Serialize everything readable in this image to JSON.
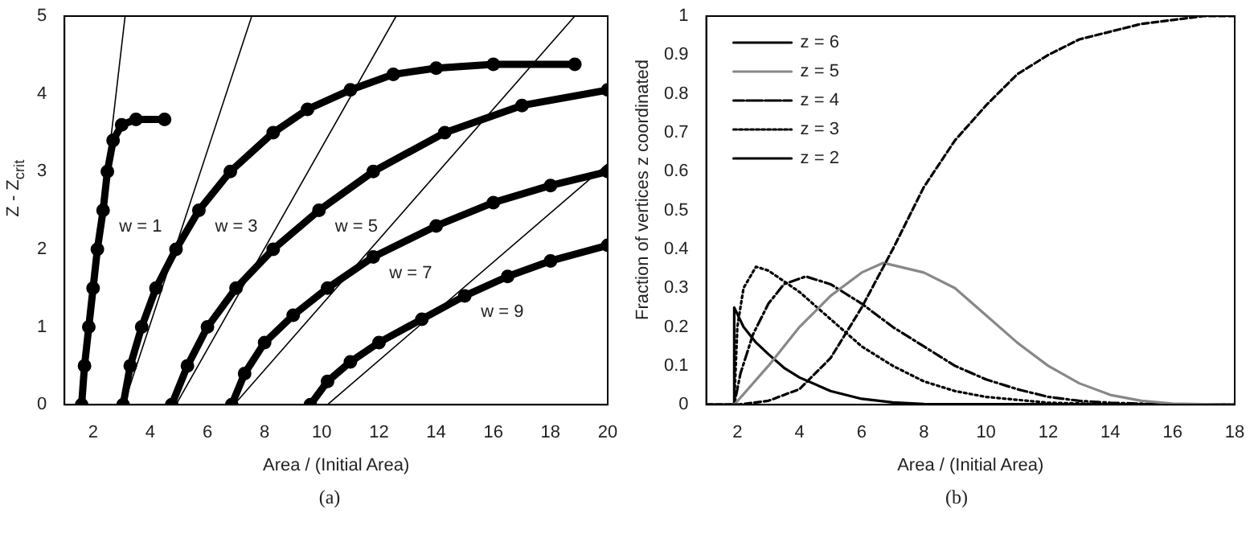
{
  "chart_data": [
    {
      "type": "line",
      "xlabel": "Area / (Initial Area)",
      "ylabel": "Z - Z$_{crit}$",
      "xlim": [
        1,
        20
      ],
      "xticks": [
        2,
        4,
        6,
        8,
        10,
        12,
        14,
        16,
        18,
        20
      ],
      "ylim": [
        0,
        5
      ],
      "yticks": [
        0,
        1,
        2,
        3,
        4,
        5
      ],
      "grid": false,
      "legend": false,
      "series": [
        {
          "name": "w = 1",
          "color": "#000000",
          "marker": "circle",
          "x": [
            1.6,
            1.7,
            1.85,
            2.0,
            2.15,
            2.35,
            2.5,
            2.7,
            3.0,
            3.5,
            4.5
          ],
          "values": [
            0,
            0.5,
            1,
            1.5,
            2,
            2.5,
            3,
            3.4,
            3.6,
            3.67,
            3.67
          ]
        },
        {
          "name": "w = 3",
          "color": "#000000",
          "marker": "circle",
          "x": [
            3.05,
            3.3,
            3.7,
            4.2,
            4.9,
            5.7,
            6.8,
            8.3,
            9.5,
            11,
            12.5,
            14,
            16,
            18.85
          ],
          "values": [
            0,
            0.5,
            1,
            1.5,
            2,
            2.5,
            3,
            3.5,
            3.8,
            4.05,
            4.25,
            4.33,
            4.38,
            4.38
          ]
        },
        {
          "name": "w = 5",
          "color": "#000000",
          "marker": "circle",
          "x": [
            4.75,
            5.3,
            6.0,
            7.0,
            8.3,
            9.9,
            11.8,
            14.3,
            17,
            20
          ],
          "values": [
            0,
            0.5,
            1,
            1.5,
            2,
            2.5,
            3,
            3.5,
            3.85,
            4.05
          ]
        },
        {
          "name": "w = 7",
          "color": "#000000",
          "marker": "circle",
          "x": [
            6.85,
            7.3,
            8.0,
            9.0,
            10.2,
            11.8,
            14,
            16,
            18,
            20
          ],
          "values": [
            0,
            0.4,
            0.8,
            1.15,
            1.5,
            1.9,
            2.3,
            2.6,
            2.82,
            3.0
          ]
        },
        {
          "name": "w = 9",
          "color": "#000000",
          "marker": "circle",
          "x": [
            9.6,
            10.2,
            11,
            12,
            13.5,
            15,
            16.5,
            18,
            20
          ],
          "values": [
            0,
            0.3,
            0.55,
            0.8,
            1.1,
            1.4,
            1.65,
            1.85,
            2.05
          ]
        },
        {
          "color": "#000000",
          "x": [
            1.54,
            3.12
          ],
          "values": [
            0,
            5
          ]
        },
        {
          "color": "#000000",
          "x": [
            3.07,
            7.55
          ],
          "values": [
            0,
            5
          ]
        },
        {
          "color": "#000000",
          "x": [
            4.9,
            12.6
          ],
          "values": [
            0,
            5
          ]
        },
        {
          "color": "#000000",
          "x": [
            6.93,
            18.85
          ],
          "values": [
            0,
            5
          ]
        },
        {
          "color": "#000000",
          "x": [
            10.2,
            20
          ],
          "values": [
            0,
            3.1
          ]
        }
      ],
      "annotations": [
        "(a)"
      ]
    },
    {
      "type": "line",
      "xlabel": "Area / (Initial Area)",
      "ylabel": "Fraction of vertices z coordinated",
      "xlim": [
        1,
        18
      ],
      "xticks": [
        2,
        4,
        6,
        8,
        10,
        12,
        14,
        16,
        18
      ],
      "ylim": [
        0,
        1
      ],
      "yticks": [
        0,
        0.1,
        0.2,
        0.3,
        0.4,
        0.5,
        0.6,
        0.7,
        0.8,
        0.9,
        1
      ],
      "grid": false,
      "legend": "top left",
      "marker": "none",
      "series": [
        {
          "name": "z = 6",
          "color": "#000000",
          "line_style": "dashed",
          "x": [
            1,
            2,
            3,
            4,
            5,
            6,
            7,
            8,
            9,
            10,
            11,
            12,
            13,
            14,
            15,
            16,
            17,
            18
          ],
          "values": [
            0,
            0,
            0.01,
            0.04,
            0.12,
            0.25,
            0.4,
            0.56,
            0.68,
            0.77,
            0.85,
            0.9,
            0.94,
            0.96,
            0.98,
            0.99,
            1,
            1
          ]
        },
        {
          "name": "z = 5",
          "color": "#888888",
          "line_style": "solid",
          "x": [
            1,
            1.9,
            3,
            4,
            5,
            6,
            6.7,
            8,
            9,
            10,
            11,
            12,
            13,
            14,
            15,
            16,
            18
          ],
          "values": [
            0,
            0,
            0.1,
            0.2,
            0.28,
            0.34,
            0.365,
            0.34,
            0.3,
            0.23,
            0.16,
            0.1,
            0.055,
            0.025,
            0.01,
            0.003,
            0
          ]
        },
        {
          "name": "z = 4",
          "color": "#000000",
          "line_style": "dashdot",
          "x": [
            1,
            1.9,
            2.1,
            2.5,
            3,
            3.5,
            4.2,
            5,
            6,
            7,
            8,
            9,
            10,
            11,
            12,
            13,
            14,
            16,
            18
          ],
          "values": [
            0,
            0,
            0.08,
            0.18,
            0.26,
            0.31,
            0.33,
            0.31,
            0.26,
            0.2,
            0.15,
            0.1,
            0.065,
            0.04,
            0.02,
            0.01,
            0.005,
            0,
            0
          ]
        },
        {
          "name": "z = 3",
          "color": "#000000",
          "line_style": "dotted",
          "x": [
            1,
            1.9,
            2.0,
            2.2,
            2.6,
            3,
            4,
            5,
            6,
            7,
            8,
            9,
            10,
            12,
            14,
            18
          ],
          "values": [
            0,
            0,
            0.2,
            0.3,
            0.355,
            0.345,
            0.29,
            0.22,
            0.15,
            0.1,
            0.06,
            0.035,
            0.02,
            0.005,
            0.001,
            0
          ]
        },
        {
          "name": "z = 2",
          "color": "#000000",
          "line_style": "solid",
          "x": [
            1,
            1.9,
            1.9,
            2.2,
            2.6,
            3,
            3.5,
            4,
            5,
            6,
            7,
            8,
            18
          ],
          "values": [
            0,
            0,
            0.25,
            0.2,
            0.16,
            0.13,
            0.095,
            0.07,
            0.035,
            0.015,
            0.006,
            0.002,
            0
          ]
        }
      ],
      "annotations": [
        "(b)"
      ]
    }
  ]
}
